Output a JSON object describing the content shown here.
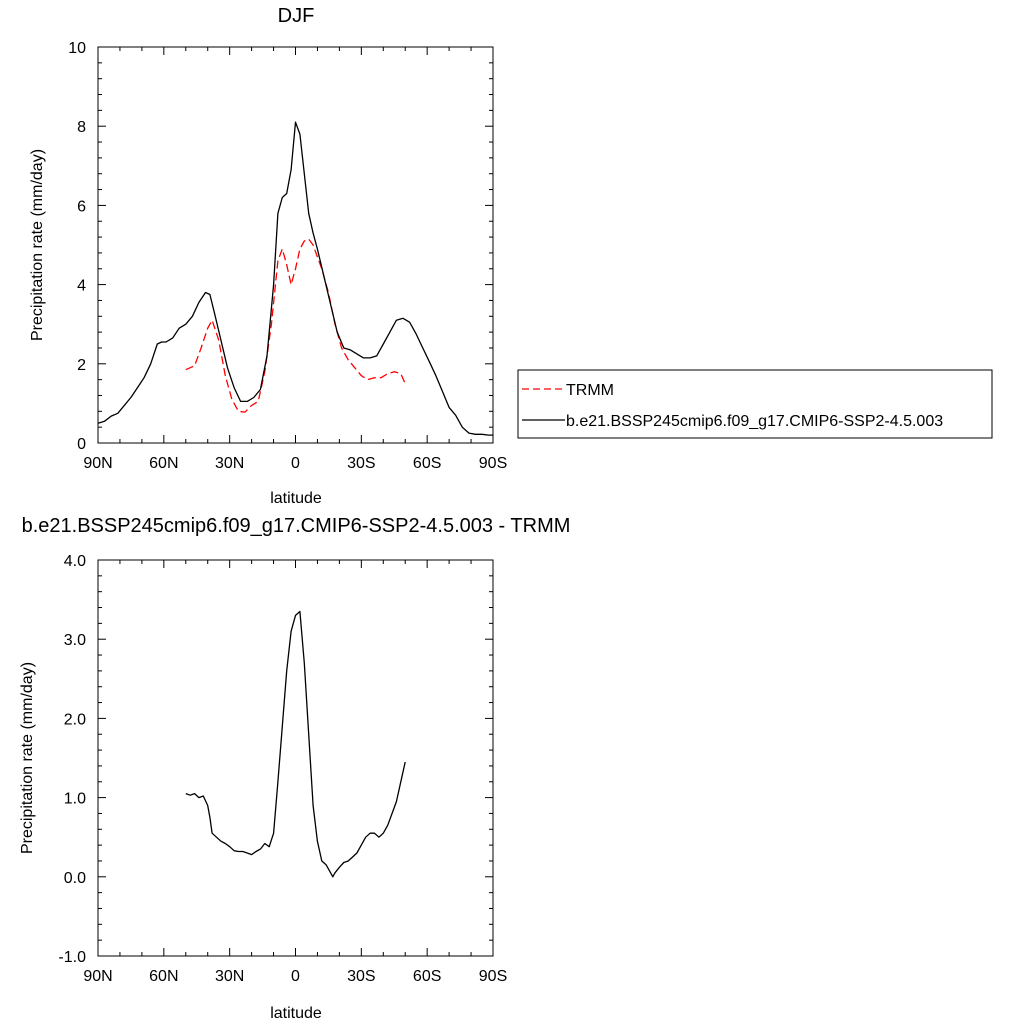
{
  "chart_data": [
    {
      "type": "line",
      "title": "DJF",
      "xlabel": "latitude",
      "ylabel": "Precipitation rate (mm/day)",
      "xlim": [
        90,
        -90
      ],
      "ylim": [
        0,
        10
      ],
      "x_ticks": [
        90,
        60,
        30,
        0,
        -30,
        -60,
        -90
      ],
      "x_tick_labels": [
        "90N",
        "60N",
        "30N",
        "0",
        "30S",
        "60S",
        "90S"
      ],
      "y_ticks": [
        0,
        2,
        4,
        6,
        8,
        10
      ],
      "y_tick_labels": [
        "0",
        "2",
        "4",
        "6",
        "8",
        "10"
      ],
      "legend_position": "right",
      "series": [
        {
          "name": "TRMM",
          "color": "#ff0000",
          "dash": "dashed",
          "x": [
            50,
            46,
            43,
            40,
            38,
            35,
            32,
            29,
            26,
            23,
            20,
            17,
            14,
            11,
            8,
            6,
            4,
            2,
            0,
            -2,
            -4,
            -6,
            -8,
            -10,
            -12,
            -15,
            -18,
            -21,
            -24,
            -27,
            -30,
            -33,
            -36,
            -39,
            -42,
            -45,
            -48,
            -50
          ],
          "values": [
            1.85,
            1.95,
            2.4,
            2.9,
            3.1,
            2.6,
            1.7,
            1.1,
            0.8,
            0.78,
            0.95,
            1.05,
            1.8,
            3.0,
            4.6,
            4.9,
            4.5,
            4.0,
            4.4,
            4.9,
            5.1,
            5.15,
            5.0,
            4.7,
            4.4,
            3.8,
            3.0,
            2.4,
            2.1,
            1.9,
            1.7,
            1.6,
            1.65,
            1.65,
            1.75,
            1.8,
            1.75,
            1.5
          ]
        },
        {
          "name": "b.e21.BSSP245cmip6.f09_g17.CMIP6-SSP2-4.5.003",
          "color": "#000000",
          "dash": "solid",
          "x": [
            90,
            87,
            84,
            81,
            78,
            75,
            72,
            69,
            66,
            63,
            61,
            59,
            56,
            53,
            50,
            47,
            44,
            41,
            39,
            37,
            34,
            31,
            28,
            25,
            22,
            19,
            16,
            13,
            10,
            8,
            6,
            4,
            2,
            0,
            -2,
            -4,
            -6,
            -8,
            -10,
            -13,
            -16,
            -19,
            -22,
            -25,
            -28,
            -31,
            -34,
            -37,
            -40,
            -43,
            -46,
            -49,
            -52,
            -55,
            -58,
            -61,
            -64,
            -67,
            -70,
            -73,
            -76,
            -79,
            -82,
            -85,
            -88,
            -90
          ],
          "values": [
            0.5,
            0.55,
            0.68,
            0.75,
            0.95,
            1.15,
            1.4,
            1.65,
            2.0,
            2.5,
            2.55,
            2.55,
            2.65,
            2.9,
            3.0,
            3.2,
            3.55,
            3.8,
            3.75,
            3.3,
            2.6,
            1.9,
            1.4,
            1.05,
            1.05,
            1.15,
            1.35,
            2.2,
            4.0,
            5.8,
            6.2,
            6.3,
            6.9,
            8.1,
            7.8,
            6.8,
            5.8,
            5.3,
            4.9,
            4.2,
            3.5,
            2.8,
            2.4,
            2.35,
            2.25,
            2.15,
            2.15,
            2.2,
            2.5,
            2.8,
            3.1,
            3.15,
            3.05,
            2.75,
            2.4,
            2.05,
            1.7,
            1.3,
            0.9,
            0.7,
            0.4,
            0.25,
            0.22,
            0.22,
            0.2,
            0.2
          ]
        }
      ]
    },
    {
      "type": "line",
      "title": "b.e21.BSSP245cmip6.f09_g17.CMIP6-SSP2-4.5.003 - TRMM",
      "xlabel": "latitude",
      "ylabel": "Precipitation rate (mm/day)",
      "xlim": [
        90,
        -90
      ],
      "ylim": [
        -1,
        4
      ],
      "x_ticks": [
        90,
        60,
        30,
        0,
        -30,
        -60,
        -90
      ],
      "x_tick_labels": [
        "90N",
        "60N",
        "30N",
        "0",
        "30S",
        "60S",
        "90S"
      ],
      "y_ticks": [
        -1,
        0,
        1,
        2,
        3,
        4
      ],
      "y_tick_labels": [
        "-1.0",
        "0.0",
        "1.0",
        "2.0",
        "3.0",
        "4.0"
      ],
      "series": [
        {
          "color": "#000000",
          "dash": "solid",
          "x": [
            50,
            48,
            46,
            44,
            42,
            40,
            39,
            38,
            36,
            34,
            32,
            30,
            28,
            26,
            24,
            22,
            20,
            18,
            16,
            14,
            12,
            10,
            8,
            6,
            4,
            2,
            0,
            -2,
            -4,
            -6,
            -8,
            -10,
            -12,
            -14,
            -16,
            -17,
            -18,
            -20,
            -22,
            -24,
            -26,
            -28,
            -30,
            -32,
            -34,
            -36,
            -38,
            -40,
            -42,
            -44,
            -46,
            -48,
            -50
          ],
          "values": [
            1.05,
            1.03,
            1.05,
            1.0,
            1.02,
            0.9,
            0.75,
            0.55,
            0.5,
            0.45,
            0.42,
            0.38,
            0.33,
            0.32,
            0.32,
            0.3,
            0.28,
            0.32,
            0.35,
            0.42,
            0.38,
            0.55,
            1.2,
            1.9,
            2.6,
            3.1,
            3.3,
            3.35,
            2.7,
            1.8,
            0.9,
            0.45,
            0.2,
            0.15,
            0.05,
            0.0,
            0.05,
            0.12,
            0.18,
            0.2,
            0.25,
            0.3,
            0.4,
            0.5,
            0.55,
            0.55,
            0.5,
            0.55,
            0.65,
            0.8,
            0.95,
            1.2,
            1.45
          ]
        }
      ]
    }
  ]
}
